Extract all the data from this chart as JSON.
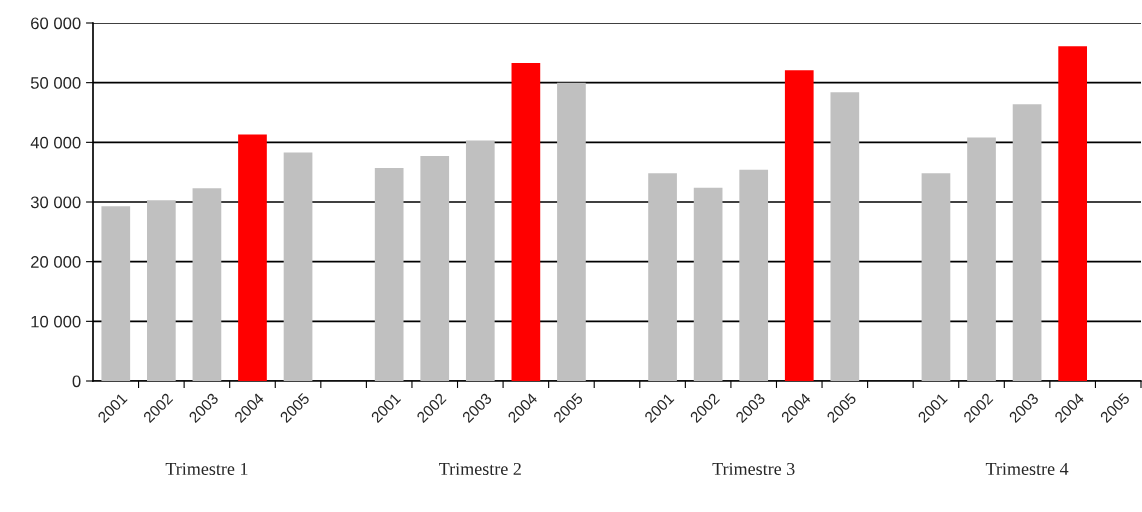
{
  "chart_data": {
    "type": "bar",
    "categories": [
      "2001",
      "2002",
      "2003",
      "2004",
      "2005",
      null,
      "2001",
      "2002",
      "2003",
      "2004",
      "2005",
      null,
      "2001",
      "2002",
      "2003",
      "2004",
      "2005",
      null,
      "2001",
      "2002",
      "2003",
      "2004",
      "2005"
    ],
    "values": [
      29300,
      30300,
      32300,
      41300,
      38300,
      null,
      35700,
      37700,
      40300,
      53300,
      50000,
      null,
      34800,
      32400,
      35400,
      52100,
      48400,
      null,
      34800,
      40800,
      46400,
      56100,
      null
    ],
    "colors": [
      "#c0c0c0",
      "#c0c0c0",
      "#c0c0c0",
      "#ff0000",
      "#c0c0c0",
      "#c0c0c0",
      "#c0c0c0",
      "#c0c0c0",
      "#c0c0c0",
      "#ff0000",
      "#c0c0c0",
      "#c0c0c0",
      "#c0c0c0",
      "#c0c0c0",
      "#c0c0c0",
      "#ff0000",
      "#c0c0c0",
      "#c0c0c0",
      "#c0c0c0",
      "#c0c0c0",
      "#c0c0c0",
      "#ff0000",
      "#c0c0c0"
    ],
    "ylim": [
      0,
      60000
    ],
    "yticks": [
      {
        "value": 0,
        "label": "0"
      },
      {
        "value": 10000,
        "label": "10 000"
      },
      {
        "value": 20000,
        "label": "20 000"
      },
      {
        "value": 30000,
        "label": "30 000"
      },
      {
        "value": 40000,
        "label": "40 000"
      },
      {
        "value": 50000,
        "label": "50 000"
      },
      {
        "value": 60000,
        "label": "60 000"
      }
    ],
    "grid": "y",
    "annotations": [
      "Trimestre 1",
      "Trimestre 2",
      "Trimestre 3",
      "Trimestre 4"
    ]
  }
}
